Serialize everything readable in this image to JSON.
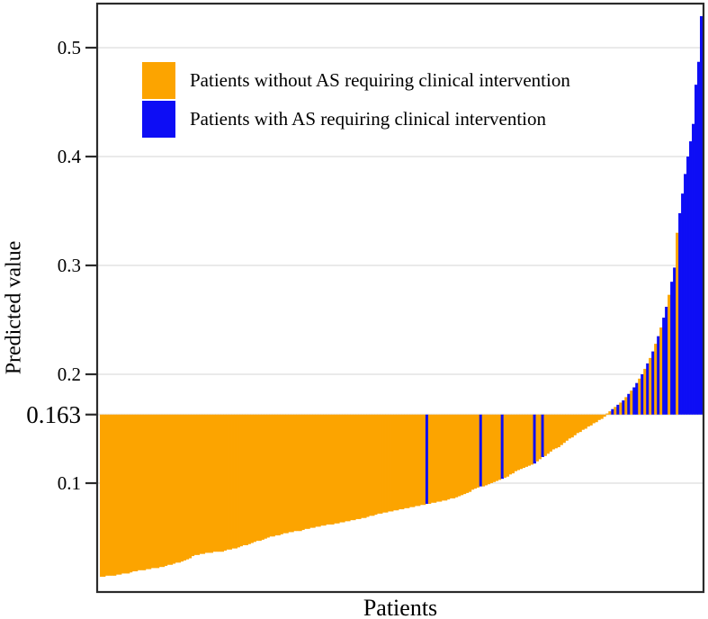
{
  "figure": {
    "ylabel": "Predicted value",
    "xlabel": "Patients",
    "legend": {
      "items": [
        {
          "label": "Patients without AS requiring clinical intervention",
          "color_key": "orange"
        },
        {
          "label": "Patients with AS requiring clinical intervention",
          "color_key": "blue"
        }
      ]
    },
    "colors": {
      "orange": "#FCA400",
      "blue": "#0D0DF5",
      "grid": "#eaeaea",
      "axis": "#2b2b2b",
      "background": "#ffffff"
    }
  },
  "chart_data": {
    "type": "bar",
    "subtype": "threshold-waterfall",
    "title": "",
    "xlabel": "Patients",
    "ylabel": "Predicted value",
    "grid": true,
    "legend_position": "upper-left",
    "threshold": 0.163,
    "threshold_label": "0.163",
    "ylim": [
      0,
      0.5405
    ],
    "yticks": [
      {
        "value": 0.5,
        "label": "0.5",
        "emphasis": false
      },
      {
        "value": 0.4,
        "label": "0.4",
        "emphasis": false
      },
      {
        "value": 0.3,
        "label": "0.3",
        "emphasis": false
      },
      {
        "value": 0.2,
        "label": "0.2",
        "emphasis": false
      },
      {
        "value": 0.163,
        "label": "0.163",
        "emphasis": true
      },
      {
        "value": 0.1,
        "label": "0.1",
        "emphasis": false
      }
    ],
    "n_patients": 224,
    "bar_meaning": "each bar spans from the patient predicted value to the 0.163 cutoff; patients sorted ascending by predicted value",
    "values": [
      0.014,
      0.014,
      0.015,
      0.015,
      0.015,
      0.015,
      0.016,
      0.016,
      0.017,
      0.017,
      0.017,
      0.018,
      0.019,
      0.019,
      0.02,
      0.02,
      0.02,
      0.021,
      0.021,
      0.022,
      0.022,
      0.022,
      0.023,
      0.023,
      0.024,
      0.025,
      0.025,
      0.026,
      0.027,
      0.027,
      0.028,
      0.029,
      0.03,
      0.031,
      0.033,
      0.034,
      0.034,
      0.035,
      0.035,
      0.036,
      0.036,
      0.036,
      0.037,
      0.037,
      0.037,
      0.037,
      0.038,
      0.039,
      0.039,
      0.04,
      0.04,
      0.041,
      0.042,
      0.043,
      0.043,
      0.044,
      0.045,
      0.046,
      0.047,
      0.047,
      0.048,
      0.049,
      0.05,
      0.051,
      0.051,
      0.052,
      0.052,
      0.053,
      0.054,
      0.054,
      0.055,
      0.055,
      0.056,
      0.056,
      0.056,
      0.057,
      0.058,
      0.058,
      0.059,
      0.059,
      0.06,
      0.06,
      0.061,
      0.061,
      0.062,
      0.062,
      0.062,
      0.063,
      0.063,
      0.064,
      0.064,
      0.065,
      0.065,
      0.066,
      0.066,
      0.067,
      0.067,
      0.068,
      0.068,
      0.069,
      0.07,
      0.07,
      0.071,
      0.072,
      0.072,
      0.073,
      0.073,
      0.074,
      0.074,
      0.075,
      0.075,
      0.076,
      0.076,
      0.077,
      0.077,
      0.078,
      0.078,
      0.079,
      0.079,
      0.08,
      0.08,
      0.081,
      0.081,
      0.082,
      0.082,
      0.083,
      0.083,
      0.084,
      0.084,
      0.085,
      0.086,
      0.086,
      0.087,
      0.088,
      0.089,
      0.09,
      0.091,
      0.092,
      0.094,
      0.095,
      0.096,
      0.097,
      0.097,
      0.098,
      0.099,
      0.1,
      0.101,
      0.102,
      0.103,
      0.104,
      0.105,
      0.106,
      0.108,
      0.109,
      0.111,
      0.112,
      0.113,
      0.114,
      0.115,
      0.116,
      0.117,
      0.118,
      0.12,
      0.122,
      0.124,
      0.125,
      0.127,
      0.129,
      0.131,
      0.132,
      0.133,
      0.135,
      0.137,
      0.139,
      0.141,
      0.142,
      0.144,
      0.146,
      0.147,
      0.149,
      0.15,
      0.152,
      0.153,
      0.155,
      0.156,
      0.158,
      0.159,
      0.161,
      0.164,
      0.166,
      0.168,
      0.17,
      0.172,
      0.174,
      0.176,
      0.179,
      0.182,
      0.185,
      0.188,
      0.192,
      0.196,
      0.2,
      0.205,
      0.21,
      0.215,
      0.221,
      0.228,
      0.235,
      0.243,
      0.252,
      0.262,
      0.273,
      0.285,
      0.298,
      0.33,
      0.348,
      0.366,
      0.384,
      0.4,
      0.414,
      0.43,
      0.466,
      0.487,
      0.529
    ],
    "blue_patient_indices": [
      121,
      141,
      149,
      161,
      164,
      190,
      192,
      194,
      196,
      198,
      199,
      201,
      203,
      205,
      207,
      209,
      210,
      212,
      213,
      215,
      216,
      217,
      218,
      219,
      220,
      221,
      222,
      223
    ]
  }
}
